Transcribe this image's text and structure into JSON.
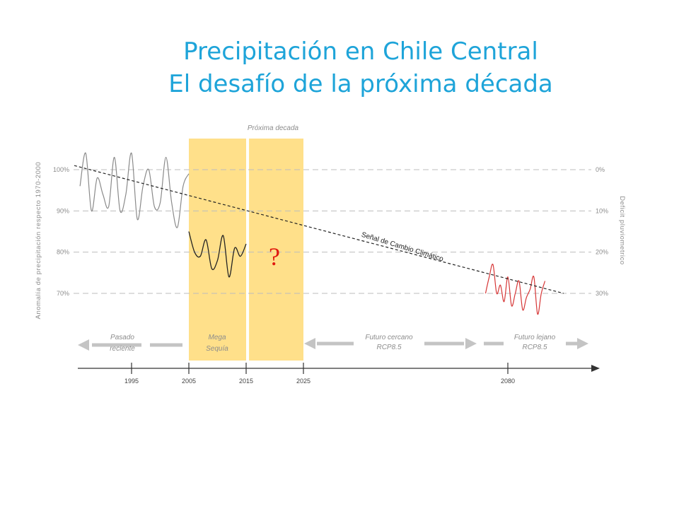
{
  "title_line1": "Precipitación en Chile Central",
  "title_line2": "El desafío de la próxima década",
  "chart_data": {
    "type": "line",
    "left_axis": {
      "label": "Anomalía de precipitación respecto 1970-2000",
      "ticks": [
        100,
        90,
        80,
        70
      ],
      "tick_labels": [
        "100%",
        "90%",
        "80%",
        "70%"
      ]
    },
    "right_axis": {
      "label": "Deficit pluviometrico",
      "ticks": [
        0,
        10,
        20,
        30
      ],
      "tick_labels": [
        "0%",
        "10%",
        "20%",
        "30%"
      ]
    },
    "x_axis": {
      "ticks": [
        1995,
        2005,
        2015,
        2025,
        2080
      ],
      "tick_labels": [
        "1995",
        "2005",
        "2015",
        "2025",
        "2080"
      ]
    },
    "grid": "dashed horizontal",
    "series": [
      {
        "name": "Pasado reciente",
        "color": "#8a8a8a",
        "x": [
          1986,
          1987,
          1988,
          1989,
          1990,
          1991,
          1992,
          1993,
          1994,
          1995,
          1996,
          1997,
          1998,
          1999,
          2000,
          2001,
          2002,
          2003,
          2004,
          2005
        ],
        "y": [
          96,
          104,
          90,
          98,
          94,
          91,
          103,
          90,
          94,
          104,
          88,
          96,
          100,
          91,
          92,
          103,
          92,
          86,
          96,
          99
        ]
      },
      {
        "name": "Mega Sequía",
        "color": "#222222",
        "x": [
          2005,
          2006,
          2007,
          2008,
          2009,
          2010,
          2011,
          2012,
          2013,
          2014,
          2015
        ],
        "y": [
          85,
          80,
          79,
          83,
          76,
          78,
          84,
          74,
          81,
          79,
          82
        ]
      },
      {
        "name": "Futuro lejano RCP8.5",
        "color": "#d63636",
        "x": [
          2074,
          2075,
          2076,
          2077,
          2078,
          2079,
          2080,
          2081,
          2082,
          2083,
          2084,
          2085,
          2086,
          2087,
          2088,
          2089,
          2090
        ],
        "y": [
          70,
          74,
          77,
          70,
          72,
          68,
          74,
          67,
          70,
          73,
          66,
          69,
          71,
          74,
          65,
          70,
          73
        ]
      }
    ],
    "trend": {
      "label": "Señal de Cambio Climático",
      "x": [
        1985,
        2095
      ],
      "y": [
        101,
        70
      ],
      "style": "dashed"
    },
    "bands": [
      {
        "label": "Mega Sequía",
        "line1": "Mega",
        "line2": "Sequía",
        "x": [
          2005,
          2015
        ],
        "color": "#ffe08a"
      },
      {
        "label": "Próxima decada",
        "x": [
          2015.5,
          2025
        ],
        "color": "#ffe08a",
        "marker": "?"
      }
    ],
    "periods": [
      {
        "line1": "Pasado",
        "line2": "reciente"
      },
      {
        "line1": "Futuro cercano",
        "line2": "RCP8.5"
      },
      {
        "line1": "Futuro lejano",
        "line2": "RCP8.5"
      }
    ],
    "band_top_label": "Próxima decada"
  }
}
